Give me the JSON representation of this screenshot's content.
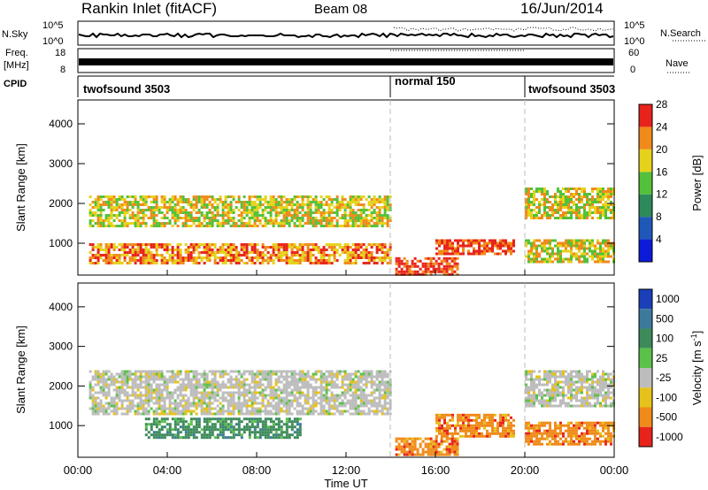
{
  "header": {
    "title": "Rankin Inlet (fitACF)",
    "beam": "Beam 08",
    "date": "16/Jun/2014"
  },
  "noise_panel": {
    "left_label": "N.Sky",
    "right_label": "N.Search",
    "left_ticks": [
      "10^5",
      "10^0"
    ],
    "right_ticks": [
      "10^5",
      "10^0"
    ]
  },
  "freq_panel": {
    "left_label_1": "Freq.",
    "left_label_2": "[MHz]",
    "right_label": "Nave",
    "left_ticks": [
      "18",
      "8"
    ],
    "right_ticks": [
      "60",
      "0"
    ]
  },
  "cpid_panel": {
    "label": "CPID",
    "segments": [
      {
        "name": "twofsound 3503",
        "start_hour": 0,
        "end_hour": 14
      },
      {
        "name": "normal 150",
        "start_hour": 14,
        "end_hour": 20
      },
      {
        "name": "twofsound 3503",
        "start_hour": 20,
        "end_hour": 24
      }
    ]
  },
  "chart_data": [
    {
      "type": "heatmap",
      "name": "power",
      "ylabel": "Slant Range [km]",
      "xlim": [
        "00:00",
        "24:00"
      ],
      "ylim": [
        200,
        4600
      ],
      "yticks": [
        1000,
        2000,
        3000,
        4000
      ],
      "colorbar": {
        "label": "Power [dB]",
        "ticks": [
          "4",
          "8",
          "12",
          "16",
          "20",
          "24",
          "28"
        ],
        "colors": [
          "#0b1bd8",
          "#1f58b8",
          "#2e8a5a",
          "#53c13a",
          "#e6d21a",
          "#f08a1a",
          "#e8231b"
        ]
      },
      "bands": [
        {
          "range_km": [
            1400,
            2200
          ],
          "hours": [
            0.5,
            14
          ],
          "level_db": 20
        },
        {
          "range_km": [
            500,
            1000
          ],
          "hours": [
            0.5,
            14
          ],
          "level_db": 24
        },
        {
          "range_km": [
            200,
            650
          ],
          "hours": [
            14.2,
            17
          ],
          "level_db": 30
        },
        {
          "range_km": [
            700,
            1100
          ],
          "hours": [
            16,
            19.5
          ],
          "level_db": 28
        },
        {
          "range_km": [
            1600,
            2400
          ],
          "hours": [
            20,
            24
          ],
          "level_db": 18
        },
        {
          "range_km": [
            500,
            1100
          ],
          "hours": [
            20,
            24
          ],
          "level_db": 20
        }
      ]
    },
    {
      "type": "heatmap",
      "name": "velocity",
      "ylabel": "Slant Range [km]",
      "xlabel": "Time UT",
      "xlim": [
        "00:00",
        "24:00"
      ],
      "ylim": [
        200,
        4600
      ],
      "yticks": [
        1000,
        2000,
        3000,
        4000
      ],
      "xticks": [
        "00:00",
        "04:00",
        "08:00",
        "12:00",
        "16:00",
        "20:00",
        "00:00"
      ],
      "colorbar": {
        "label": "Velocity [m s-1]",
        "ticks": [
          "1000",
          "500",
          "100",
          "25",
          "-25",
          "-100",
          "-500",
          "-1000"
        ],
        "colors": [
          "#1b3fb8",
          "#3c7a9c",
          "#3d8b5a",
          "#5cc14a",
          "#bdbdbd",
          "#e6c21a",
          "#f08a1a",
          "#e8231b"
        ]
      },
      "bands": [
        {
          "range_km": [
            1300,
            2400
          ],
          "hours": [
            0.5,
            14
          ],
          "level_ms": 0
        },
        {
          "range_km": [
            700,
            1200
          ],
          "hours": [
            3,
            10
          ],
          "level_ms": 200
        },
        {
          "range_km": [
            250,
            700
          ],
          "hours": [
            14.2,
            17
          ],
          "level_ms": -300
        },
        {
          "range_km": [
            700,
            1300
          ],
          "hours": [
            16,
            19.5
          ],
          "level_ms": -300
        },
        {
          "range_km": [
            1500,
            2400
          ],
          "hours": [
            20,
            24
          ],
          "level_ms": 0
        },
        {
          "range_km": [
            500,
            1100
          ],
          "hours": [
            20,
            24
          ],
          "level_ms": -200
        }
      ]
    }
  ]
}
